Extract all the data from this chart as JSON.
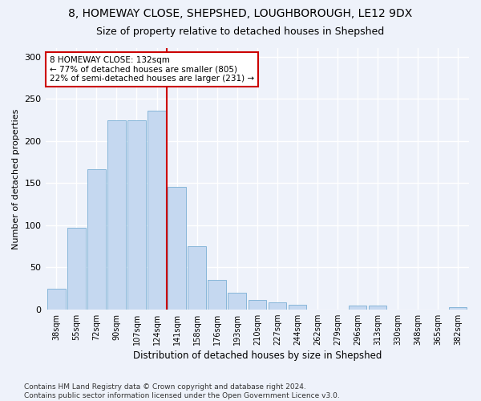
{
  "title1": "8, HOMEWAY CLOSE, SHEPSHED, LOUGHBOROUGH, LE12 9DX",
  "title2": "Size of property relative to detached houses in Shepshed",
  "xlabel": "Distribution of detached houses by size in Shepshed",
  "ylabel": "Number of detached properties",
  "bar_labels": [
    "38sqm",
    "55sqm",
    "72sqm",
    "90sqm",
    "107sqm",
    "124sqm",
    "141sqm",
    "158sqm",
    "176sqm",
    "193sqm",
    "210sqm",
    "227sqm",
    "244sqm",
    "262sqm",
    "279sqm",
    "296sqm",
    "313sqm",
    "330sqm",
    "348sqm",
    "365sqm",
    "382sqm"
  ],
  "bar_values": [
    24,
    97,
    166,
    224,
    224,
    236,
    145,
    75,
    35,
    20,
    11,
    8,
    5,
    0,
    0,
    4,
    4,
    0,
    0,
    0,
    3
  ],
  "bar_color": "#c5d8f0",
  "bar_edgecolor": "#7aafd4",
  "annotation_text": "8 HOMEWAY CLOSE: 132sqm\n← 77% of detached houses are smaller (805)\n22% of semi-detached houses are larger (231) →",
  "annotation_box_color": "#ffffff",
  "annotation_box_edgecolor": "#cc0000",
  "red_line_color": "#cc0000",
  "ylim": [
    0,
    310
  ],
  "yticks": [
    0,
    50,
    100,
    150,
    200,
    250,
    300
  ],
  "footer_text": "Contains HM Land Registry data © Crown copyright and database right 2024.\nContains public sector information licensed under the Open Government Licence v3.0.",
  "background_color": "#eef2fa",
  "grid_color": "#ffffff",
  "title1_fontsize": 10,
  "title2_fontsize": 9,
  "annotation_fontsize": 7.5,
  "footer_fontsize": 6.5,
  "ylabel_fontsize": 8,
  "xlabel_fontsize": 8.5
}
